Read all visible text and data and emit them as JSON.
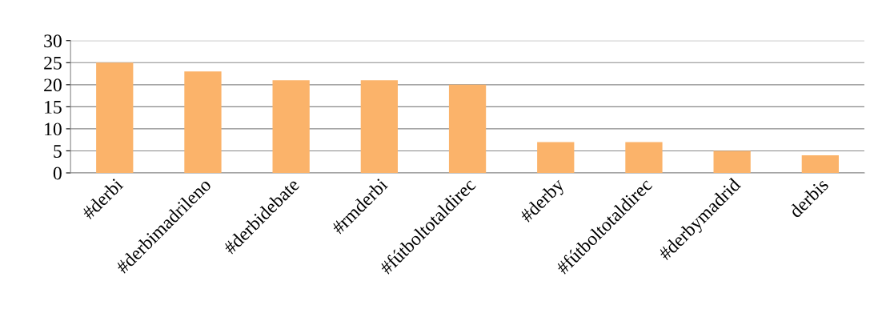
{
  "chart_data": {
    "type": "bar",
    "categories": [
      "#derbi",
      "#derbimadrileno",
      "#derbidebate",
      "#rmderbi",
      "#fútboltotaldirec",
      "#derby",
      "#fútboltotaldirec",
      "#derbymadrid",
      "derbis"
    ],
    "values": [
      25,
      23,
      21,
      21,
      20,
      7,
      7,
      5,
      4
    ],
    "color": "#fbb36a",
    "ylim": [
      0,
      30
    ],
    "yticks": [
      0,
      5,
      10,
      15,
      20,
      25,
      30
    ],
    "grid": "y"
  }
}
